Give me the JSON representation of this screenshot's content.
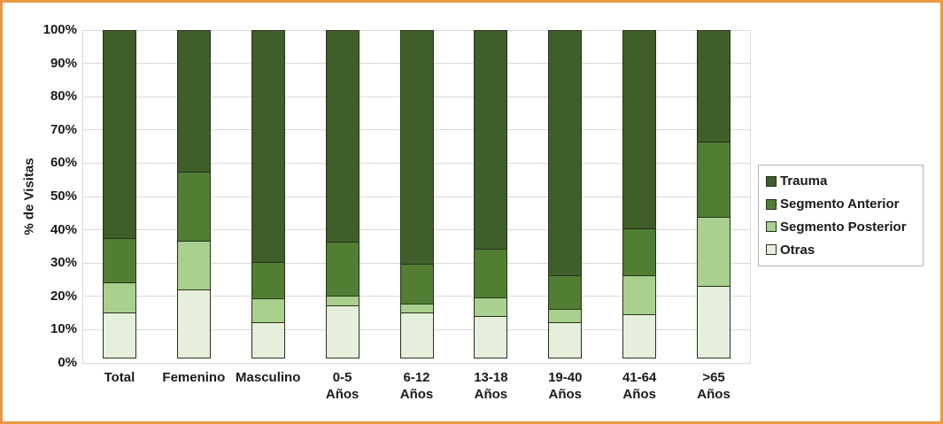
{
  "figure": {
    "frame_color": "#e89a43",
    "background_color": "#ffffff",
    "gridline_color": "#d9d9d9",
    "segment_outline_color": "#25321a"
  },
  "chart_data": {
    "type": "bar",
    "stacked": true,
    "percent": true,
    "title": "",
    "xlabel": "",
    "ylabel": "% de Visitas",
    "ylim": [
      0,
      100
    ],
    "ytick_step": 10,
    "ytick_suffix": "%",
    "grid": true,
    "categories": [
      "Total",
      "Femenino",
      "Masculino",
      "0-5\nAños",
      "6-12\nAños",
      "13-18\nAños",
      "19-40\nAños",
      "41-64\nAños",
      ">65\nAños"
    ],
    "series": [
      {
        "name": "Otras",
        "color": "#e6efdc",
        "values": [
          14,
          21,
          11,
          16,
          14,
          13,
          11,
          13.5,
          22
        ]
      },
      {
        "name": "Segmento Posterior",
        "color": "#a9d08e",
        "values": [
          9.5,
          15,
          7.5,
          3.5,
          3,
          6,
          4.5,
          12,
          21
        ]
      },
      {
        "name": "Segmento Anterior",
        "color": "#517e33",
        "values": [
          13.5,
          21,
          11.5,
          16.5,
          12.5,
          15,
          10.5,
          14.5,
          23
        ]
      },
      {
        "name": "Trauma",
        "color": "#405e29",
        "values": [
          63,
          43,
          70,
          64,
          70.5,
          66,
          74,
          60,
          34
        ]
      }
    ],
    "legend": {
      "position": "right",
      "order": [
        "Trauma",
        "Segmento Anterior",
        "Segmento Posterior",
        "Otras"
      ]
    }
  }
}
